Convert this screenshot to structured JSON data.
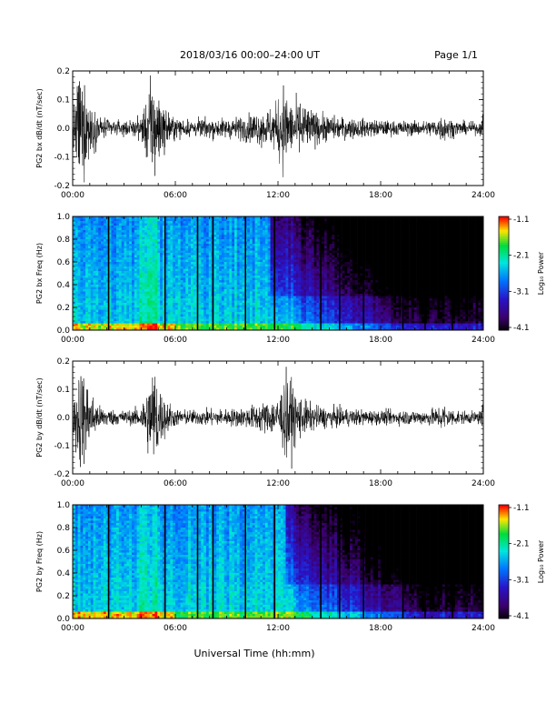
{
  "header": {
    "title": "2018/03/16  00:00–24:00 UT",
    "page": "Page 1/1"
  },
  "footer": {
    "xlabel": "Universal Time (hh:mm)"
  },
  "colors": {
    "trace": "#000000",
    "axis": "#000000",
    "background": "#ffffff"
  },
  "chart_data": [
    {
      "type": "line",
      "id": "bx-dbdt",
      "ylabel": "PG2 bx dB/dt (nT/sec)",
      "xlim": [
        0,
        24
      ],
      "ylim": [
        -0.2,
        0.2
      ],
      "x_ticks": [
        "00:00",
        "06:00",
        "12:00",
        "18:00",
        "24:00"
      ],
      "y_ticks": [
        "0.2",
        "0.1",
        "0.0",
        "-0.1",
        "-0.2"
      ],
      "envelope": {
        "x_hours": [
          0,
          0.3,
          0.6,
          1.0,
          1.5,
          2.5,
          3.5,
          4.0,
          4.3,
          4.6,
          4.8,
          5.2,
          6.0,
          7.0,
          8.0,
          9.0,
          10.0,
          10.5,
          11.0,
          11.5,
          11.9,
          12.3,
          12.8,
          13.3,
          13.8,
          14.5,
          15.5,
          16.5,
          17.5,
          18.5,
          19.5,
          20.5,
          21.3,
          21.6,
          22.0,
          22.5,
          23.0,
          23.5,
          23.9,
          24.0
        ],
        "amplitude": [
          0.05,
          0.22,
          0.2,
          0.12,
          0.05,
          0.03,
          0.03,
          0.05,
          0.12,
          0.2,
          0.22,
          0.1,
          0.04,
          0.035,
          0.04,
          0.04,
          0.05,
          0.06,
          0.07,
          0.08,
          0.1,
          0.18,
          0.1,
          0.12,
          0.08,
          0.06,
          0.045,
          0.04,
          0.035,
          0.03,
          0.03,
          0.03,
          0.04,
          0.06,
          0.04,
          0.03,
          0.025,
          0.025,
          0.03,
          0.1
        ]
      }
    },
    {
      "type": "heatmap",
      "id": "bx-freq",
      "ylabel": "PG2 bx Freq (Hz)",
      "xlim": [
        0,
        24
      ],
      "ylim": [
        0.0,
        1.0
      ],
      "x_ticks": [
        "00:00",
        "06:00",
        "12:00",
        "18:00",
        "24:00"
      ],
      "y_ticks": [
        "1.0",
        "0.8",
        "0.6",
        "0.4",
        "0.2",
        "0.0"
      ],
      "colorbar": {
        "label": "Log₁₀ Power",
        "ticks": [
          "-1.1",
          "-2.1",
          "-3.1",
          "-4.1"
        ],
        "range": [
          -4.1,
          -1.1
        ]
      },
      "gap_lines_hours": [
        2.1,
        5.4,
        7.3,
        8.2,
        10.1,
        11.8,
        14.5,
        15.6,
        17.0,
        19.3,
        20.6,
        22.2
      ],
      "dark_onset_hours": 11.5
    },
    {
      "type": "line",
      "id": "by-dbdt",
      "ylabel": "PG2 by dB/dt (nT/sec)",
      "xlim": [
        0,
        24
      ],
      "ylim": [
        -0.2,
        0.2
      ],
      "x_ticks": [
        "00:00",
        "06:00",
        "12:00",
        "18:00",
        "24:00"
      ],
      "y_ticks": [
        "0.2",
        "0.1",
        "0.0",
        "-0.1",
        "-0.2"
      ],
      "envelope": {
        "x_hours": [
          0,
          0.3,
          0.6,
          1.0,
          1.5,
          2.5,
          3.5,
          4.0,
          4.3,
          4.6,
          4.8,
          5.2,
          6.0,
          7.0,
          8.0,
          9.0,
          10.0,
          10.5,
          11.0,
          11.5,
          11.9,
          12.3,
          12.6,
          12.9,
          13.3,
          13.8,
          14.5,
          15.5,
          16.5,
          17.5,
          18.5,
          19.5,
          20.5,
          21.3,
          21.6,
          22.0,
          22.5,
          23.0,
          23.5,
          23.9,
          24.0
        ],
        "amplitude": [
          0.05,
          0.22,
          0.2,
          0.12,
          0.05,
          0.03,
          0.03,
          0.05,
          0.12,
          0.2,
          0.22,
          0.1,
          0.035,
          0.03,
          0.035,
          0.035,
          0.04,
          0.05,
          0.06,
          0.07,
          0.08,
          0.14,
          0.2,
          0.12,
          0.09,
          0.06,
          0.045,
          0.04,
          0.035,
          0.03,
          0.03,
          0.03,
          0.03,
          0.04,
          0.06,
          0.04,
          0.03,
          0.025,
          0.025,
          0.03,
          0.1
        ]
      }
    },
    {
      "type": "heatmap",
      "id": "by-freq",
      "ylabel": "PG2 by Freq (Hz)",
      "xlim": [
        0,
        24
      ],
      "ylim": [
        0.0,
        1.0
      ],
      "x_ticks": [
        "00:00",
        "06:00",
        "12:00",
        "18:00",
        "24:00"
      ],
      "y_ticks": [
        "1.0",
        "0.8",
        "0.6",
        "0.4",
        "0.2",
        "0.0"
      ],
      "colorbar": {
        "label": "Log₁₀ Power",
        "ticks": [
          "-1.1",
          "-2.1",
          "-3.1",
          "-4.1"
        ],
        "range": [
          -4.1,
          -1.1
        ]
      },
      "gap_lines_hours": [
        2.1,
        5.4,
        7.3,
        8.2,
        10.1,
        11.8,
        14.5,
        15.6,
        17.0,
        19.3,
        20.6,
        22.2
      ],
      "dark_onset_hours": 12.5
    }
  ]
}
